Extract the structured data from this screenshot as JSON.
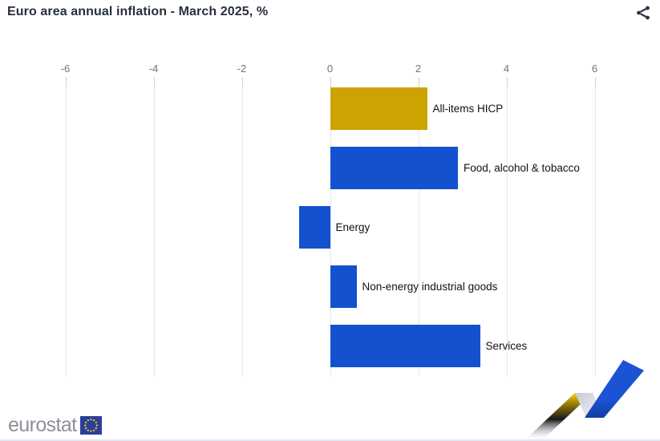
{
  "chart_data": {
    "type": "bar",
    "orientation": "horizontal",
    "title": "Euro area annual inflation - March 2025, %",
    "unit": "%",
    "categories": [
      "All-items HICP",
      "Food, alcohol & tobacco",
      "Energy",
      "Non-energy industrial goods",
      "Services"
    ],
    "values": [
      2.2,
      2.9,
      -0.7,
      0.6,
      3.4
    ],
    "bar_colors": [
      "#CCA300",
      "#1451CE",
      "#1451CE",
      "#1451CE",
      "#1451CE"
    ],
    "xlim": [
      -6,
      6
    ],
    "xticks": [
      -6,
      -4,
      -2,
      0,
      2,
      4,
      6
    ],
    "xtick_labels": [
      "-6",
      "-4",
      "-2",
      "0",
      "2",
      "4",
      "6"
    ],
    "grid": true,
    "legend": false,
    "axis_position": "top"
  },
  "footer": {
    "logo_text": "eurostat"
  },
  "icons": {
    "share": "share-network",
    "eu_flag": "eu-flag",
    "ribbon": "eurostat-zigzag-ribbon"
  },
  "colors": {
    "title": "#262F3E",
    "axis_label": "#6E737E",
    "gridline": "#E3E8F1",
    "tick": "#C9D2DF",
    "bar_label": "#111111",
    "accent_gold": "#CCA300",
    "accent_blue": "#1451CE",
    "logo_gray": "#8B9099",
    "flag_blue": "#2B3F98",
    "star_yellow": "#FFD617",
    "ribbon_yellow": "#FFCE00",
    "ribbon_blue": "#1C52D4"
  }
}
